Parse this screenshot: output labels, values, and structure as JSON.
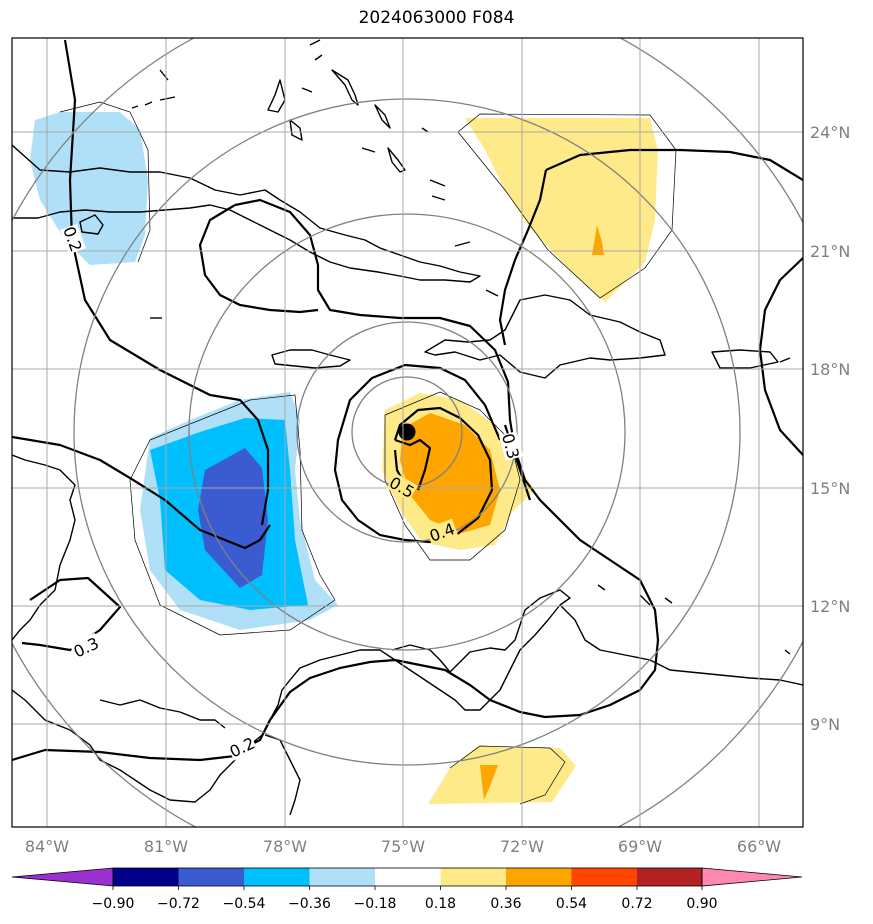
{
  "title": "2024063000 F084",
  "map": {
    "lon_labels": [
      "84°W",
      "81°W",
      "78°W",
      "75°W",
      "72°W",
      "69°W",
      "66°W"
    ],
    "lat_labels": [
      "24°N",
      "21°N",
      "18°N",
      "15°N",
      "12°N",
      "9°N"
    ],
    "contour_labels": [
      "0.2",
      "0.2",
      "0.3",
      "0.3",
      "0.4",
      "0.5"
    ],
    "storm_center_marker": "black-dot"
  },
  "colorbar": {
    "ticks": [
      "−0.90",
      "−0.72",
      "−0.54",
      "−0.36",
      "−0.18",
      "0.18",
      "0.36",
      "0.54",
      "0.72",
      "0.90"
    ],
    "colors": [
      "#9b30d0",
      "#00008b",
      "#3b5bd0",
      "#00bfff",
      "#b0e0f8",
      "#ffffff",
      "#ffea8a",
      "#ffa500",
      "#ff4500",
      "#b22222",
      "#ff88b0"
    ]
  }
}
